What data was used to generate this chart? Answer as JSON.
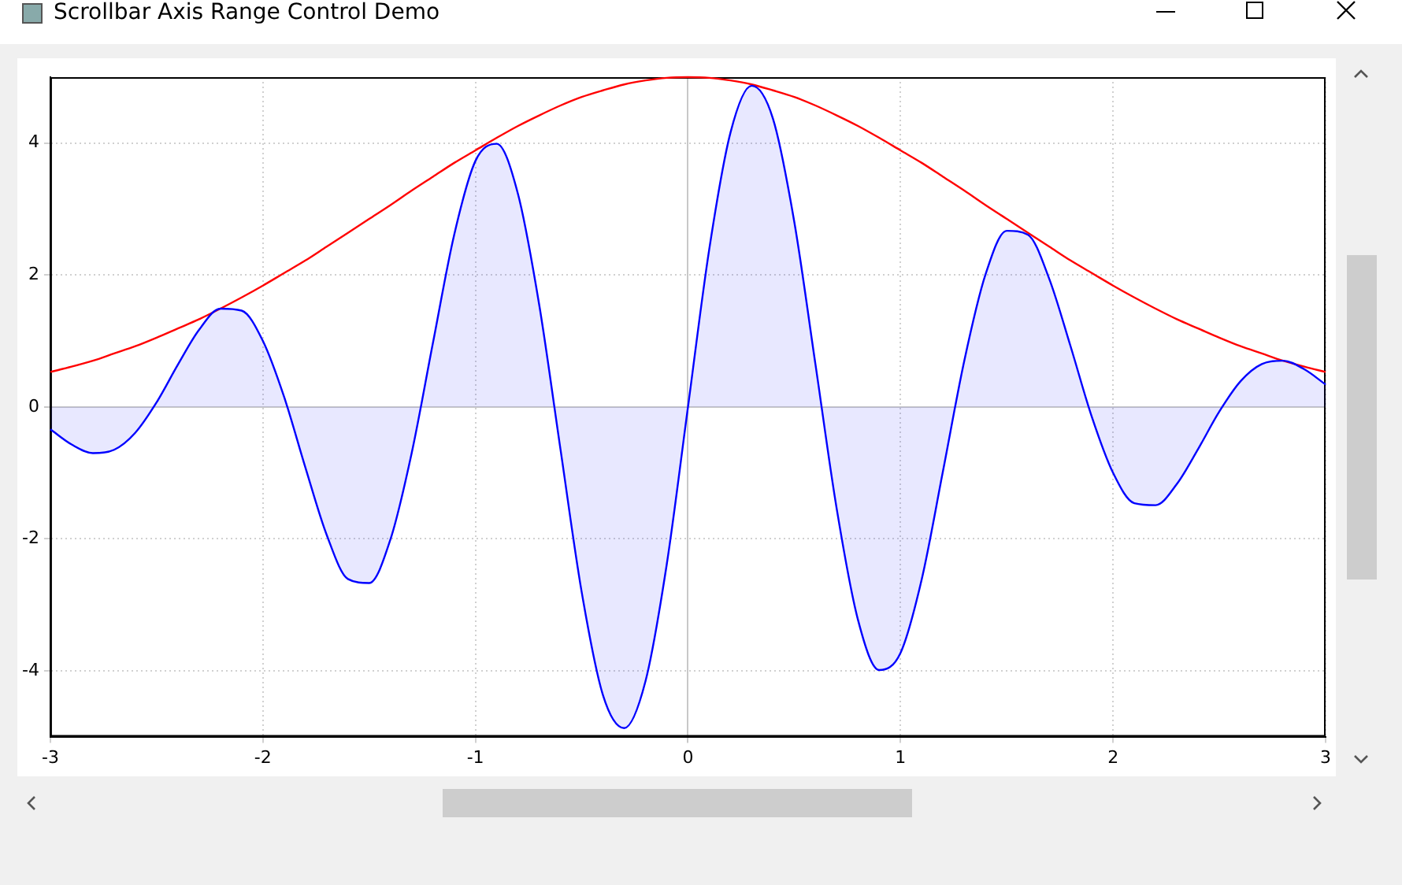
{
  "chart_data": {
    "type": "line",
    "title": "Scrollbar Axis Range Control Demo",
    "x": [
      -3,
      -2.9,
      -2.8,
      -2.7,
      -2.6,
      -2.5,
      -2.4,
      -2.3,
      -2.2,
      -2.1,
      -2,
      -1.9,
      -1.8,
      -1.7,
      -1.6,
      -1.5,
      -1.4,
      -1.3,
      -1.2,
      -1.1,
      -1,
      -0.9,
      -0.8,
      -0.7,
      -0.6,
      -0.5,
      -0.4,
      -0.3,
      -0.2,
      -0.1,
      0,
      0.1,
      0.2,
      0.3,
      0.4,
      0.5,
      0.6,
      0.7,
      0.8,
      0.9,
      1,
      1.1,
      1.2,
      1.3,
      1.4,
      1.5,
      1.6,
      1.7,
      1.8,
      1.9,
      2,
      2.1,
      2.2,
      2.3,
      2.4,
      2.5,
      2.6,
      2.7,
      2.8,
      2.9,
      3
    ],
    "series": [
      {
        "type": "area",
        "color": "#0000ff",
        "values": [
          -0.34,
          -0.57,
          -0.7,
          -0.65,
          -0.39,
          0.07,
          0.64,
          1.17,
          1.49,
          1.46,
          1,
          0.15,
          -0.92,
          -1.94,
          -2.61,
          -2.67,
          -2.01,
          -0.7,
          0.97,
          2.61,
          3.73,
          3.99,
          3.23,
          1.55,
          -0.64,
          -2.81,
          -4.37,
          -4.87,
          -4.16,
          -2.39,
          0,
          2.39,
          4.16,
          4.87,
          4.37,
          2.81,
          0.64,
          -1.55,
          -3.23,
          -3.99,
          -3.73,
          -2.61,
          -0.97,
          0.7,
          2.01,
          2.67,
          2.61,
          1.94,
          0.92,
          -0.15,
          -1,
          -1.46,
          -1.49,
          -1.17,
          -0.64,
          -0.07,
          0.39,
          0.65,
          0.7,
          0.57,
          0.34
        ]
      },
      {
        "color": "#ff0000",
        "values": [
          0.53,
          0.61,
          0.7,
          0.81,
          0.92,
          1.05,
          1.19,
          1.33,
          1.49,
          1.66,
          1.84,
          2.03,
          2.22,
          2.43,
          2.64,
          2.85,
          3.06,
          3.28,
          3.49,
          3.7,
          3.89,
          4.08,
          4.26,
          4.42,
          4.57,
          4.7,
          4.8,
          4.89,
          4.95,
          4.99,
          5,
          4.99,
          4.95,
          4.89,
          4.8,
          4.7,
          4.57,
          4.42,
          4.26,
          4.08,
          3.89,
          3.7,
          3.49,
          3.28,
          3.06,
          2.85,
          2.64,
          2.43,
          2.22,
          2.03,
          1.84,
          1.66,
          1.49,
          1.33,
          1.19,
          1.05,
          0.92,
          0.81,
          0.7,
          0.61,
          0.53
        ]
      }
    ],
    "xlim": [
      -3,
      3
    ],
    "ylim": [
      -5,
      5
    ],
    "xticks": [
      -3,
      -2,
      -1,
      0,
      1,
      2,
      3
    ],
    "yticks": [
      -4,
      -2,
      0,
      2,
      4
    ],
    "grid": true,
    "legend": false,
    "marker": "none",
    "line_style": "solid"
  }
}
